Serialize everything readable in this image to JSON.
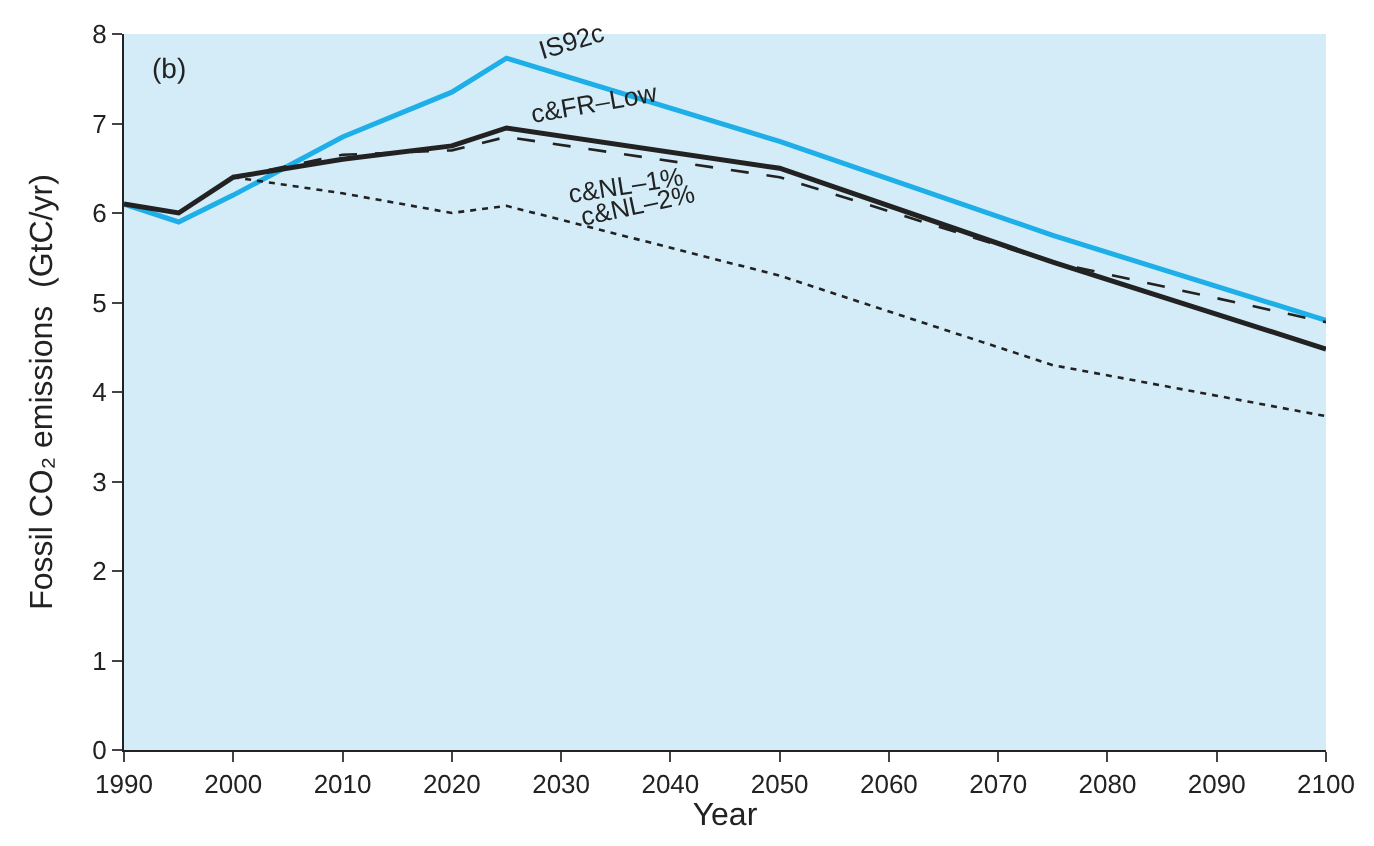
{
  "chart_data": {
    "type": "line",
    "xlabel": "Year",
    "ylabel": "Fossil CO₂ emissions  (GtC/yr)",
    "annotations": [
      "(b)"
    ],
    "series": [
      {
        "name": "IS92c",
        "color": "#1eaee8",
        "line_style": "solid",
        "x": [
          1990,
          1995,
          2000,
          2010,
          2020,
          2025,
          2050,
          2075,
          2100
        ],
        "values": [
          6.1,
          5.9,
          6.2,
          6.85,
          7.35,
          7.73,
          6.8,
          5.75,
          4.8
        ]
      },
      {
        "name": "c&FR–Low",
        "color": "#222222",
        "line_style": "solid",
        "x": [
          1990,
          1995,
          2000,
          2010,
          2020,
          2025,
          2050,
          2075,
          2100
        ],
        "values": [
          6.1,
          6.0,
          6.4,
          6.6,
          6.75,
          6.95,
          6.5,
          5.45,
          4.48
        ]
      },
      {
        "name": "c&NL–1%",
        "color": "#222222",
        "line_style": "dashed",
        "x": [
          2000,
          2010,
          2020,
          2025,
          2050,
          2075,
          2100
        ],
        "values": [
          6.4,
          6.65,
          6.7,
          6.85,
          6.4,
          5.45,
          4.78
        ]
      },
      {
        "name": "c&NL–2%",
        "color": "#222222",
        "line_style": "dotted",
        "x": [
          2000,
          2010,
          2020,
          2025,
          2050,
          2075,
          2100
        ],
        "values": [
          6.4,
          6.22,
          6.0,
          6.08,
          5.3,
          4.3,
          3.73
        ]
      }
    ],
    "xlim": [
      1990,
      2100
    ],
    "ylim": [
      0,
      8
    ],
    "xticks": [
      1990,
      2000,
      2010,
      2020,
      2030,
      2040,
      2050,
      2060,
      2070,
      2080,
      2090,
      2100
    ],
    "yticks": [
      0,
      1,
      2,
      3,
      4,
      5,
      6,
      7,
      8
    ],
    "grid": false,
    "legend": false
  }
}
